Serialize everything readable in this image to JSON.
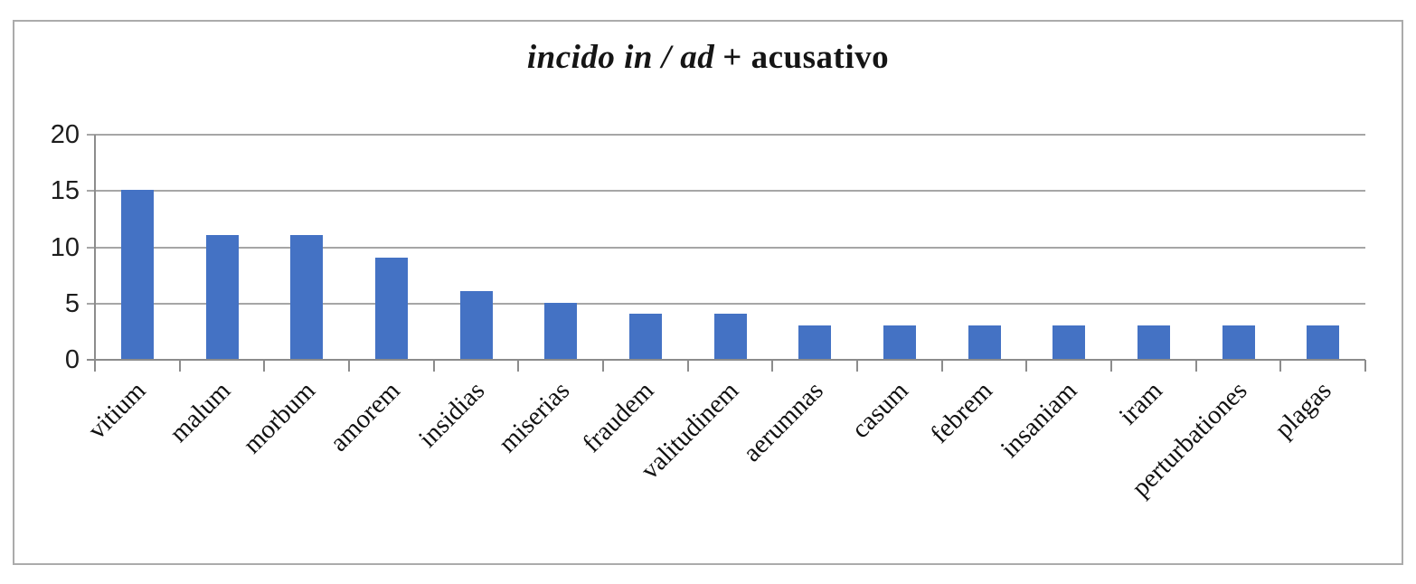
{
  "chart_data": {
    "type": "bar",
    "title_italic": "incido in / ad",
    "title_rest": "+ acusativo",
    "categories": [
      "vitium",
      "malum",
      "morbum",
      "amorem",
      "insidias",
      "miserias",
      "fraudem",
      "valitudinem",
      "aerumnas",
      "casum",
      "febrem",
      "insaniam",
      "iram",
      "perturbationes",
      "plagas"
    ],
    "values": [
      15,
      11,
      11,
      9,
      6,
      5,
      4,
      4,
      3,
      3,
      3,
      3,
      3,
      3,
      3
    ],
    "xlabel": "",
    "ylabel": "",
    "ylim": [
      0,
      20
    ],
    "yticks": [
      0,
      5,
      10,
      15,
      20
    ],
    "grid": true,
    "legend": "none",
    "bar_color": "#4472C4",
    "gridline_color": "#A6A6A6",
    "axis_color": "#8C8C8C",
    "frame_border_color": "#ABABAB"
  }
}
